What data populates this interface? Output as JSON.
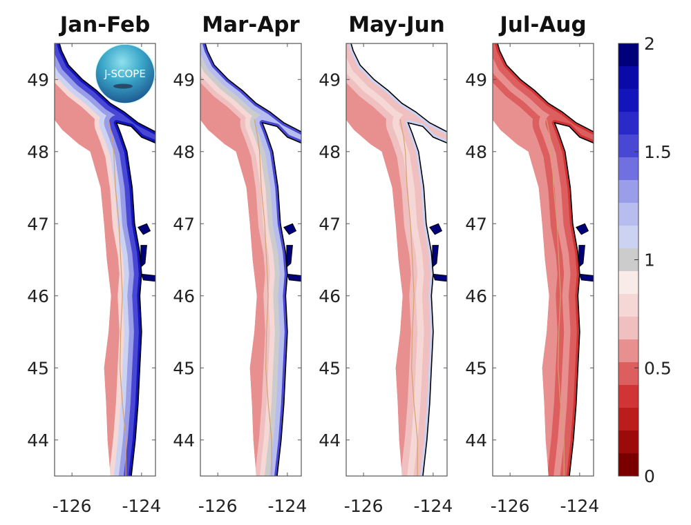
{
  "logo": {
    "text": "J-SCOPE"
  },
  "chart_data": {
    "type": "heatmap",
    "panels": [
      {
        "title": "Jan-Feb",
        "offshore_color": "#e89090",
        "nearshore_bands": [
          "#f5d8d5",
          "#ccd2f2",
          "#9a9ee8",
          "#4848d4",
          "#1414bb"
        ]
      },
      {
        "title": "Mar-Apr",
        "offshore_color": "#e89090",
        "nearshore_bands": [
          "#f0c0c0",
          "#f5d8d5",
          "#cccccc",
          "#b8bdf0",
          "#4848d4"
        ]
      },
      {
        "title": "May-Jun",
        "offshore_color": "#e89090",
        "nearshore_bands": [
          "#f0c0c0",
          "#f5d8d5",
          "#f0c0c0",
          "#ccd2f2"
        ]
      },
      {
        "title": "Jul-Aug",
        "offshore_color": "#e89090",
        "nearshore_bands": [
          "#dd5e5e",
          "#e89090",
          "#dd5e5e",
          "#d03434"
        ]
      }
    ],
    "xlim": [
      -126.5,
      -123.6
    ],
    "ylim": [
      43.5,
      49.5
    ],
    "x_ticks": [
      -126,
      -124
    ],
    "x_tick_labels": [
      "-126",
      "-124"
    ],
    "y_ticks": [
      49,
      48,
      47,
      46,
      45,
      44
    ],
    "y_tick_labels": [
      "49",
      "48",
      "47",
      "46",
      "45",
      "44"
    ],
    "colorbar": {
      "range": [
        0,
        2
      ],
      "ticks": [
        2,
        1.5,
        1,
        0.5,
        0
      ],
      "tick_labels": [
        "2",
        "1.5",
        "1",
        "0.5",
        "0"
      ],
      "colors_top_to_bottom": [
        "#00007a",
        "#0a0aa8",
        "#1414bb",
        "#2a2ac8",
        "#4848d4",
        "#7070e0",
        "#9a9ee8",
        "#b8bdf0",
        "#ccd2f2",
        "#cccccc",
        "#f8ebe8",
        "#f5d8d5",
        "#f0c0c0",
        "#e89090",
        "#dd5e5e",
        "#d03434",
        "#bb1c1c",
        "#9c0a0a",
        "#7a0000"
      ]
    },
    "land_color": "#ffffff",
    "coastline_color": "#000000",
    "estuary_color": "#00007a"
  }
}
